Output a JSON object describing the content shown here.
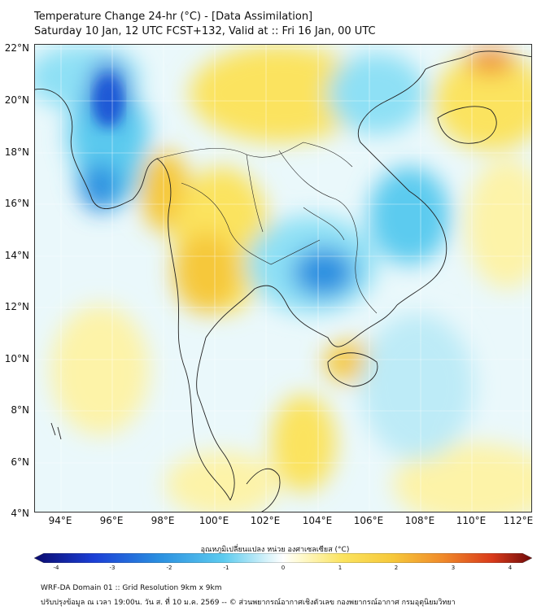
{
  "header": {
    "title": "Temperature Change 24-hr (°C) - [Data Assimilation]",
    "subtitle": "Saturday 10 Jan, 12 UTC FCST+132, Valid at :: Fri 16 Jan, 00 UTC"
  },
  "map": {
    "lat_labels": [
      "22°N",
      "20°N",
      "18°N",
      "16°N",
      "14°N",
      "12°N",
      "10°N",
      "8°N",
      "6°N",
      "4°N"
    ],
    "lon_labels": [
      "94°E",
      "96°E",
      "98°E",
      "100°E",
      "102°E",
      "104°E",
      "106°E",
      "108°E",
      "110°E",
      "112°E"
    ],
    "lat_range": [
      4,
      22
    ],
    "lon_range": [
      93,
      112.3
    ],
    "colors": {
      "background": "#eaf8fb",
      "warm_light": "#fdf3a8",
      "warm": "#fbe35e",
      "warm_strong": "#f6c83a",
      "hot": "#f08a2a",
      "cool_light": "#bdebf7",
      "cool": "#5ccbef",
      "cool_strong": "#2a8fe0",
      "cold": "#1b59d6",
      "border": "#222222"
    }
  },
  "colorbar": {
    "title": "อุณหภูมิเปลี่ยนแปลง หน่วย องศาเซลเซียส (°C)",
    "ticks": [
      "-4",
      "-3",
      "-2",
      "-1",
      "0",
      "1",
      "2",
      "3",
      "4"
    ],
    "range": [
      -4,
      4
    ]
  },
  "footer": {
    "line1": "WRF-DA Domain 01 :: Grid Resolution 9km x 9km",
    "line2": "ปรับปรุงข้อมูล ณ เวลา 19:00น. วัน ส. ที่ 10 ม.ค. 2569 -- © ส่วนพยากรณ์อากาศเชิงตัวเลข กองพยากรณ์อากาศ กรมอุตุนิยมวิทยา"
  }
}
